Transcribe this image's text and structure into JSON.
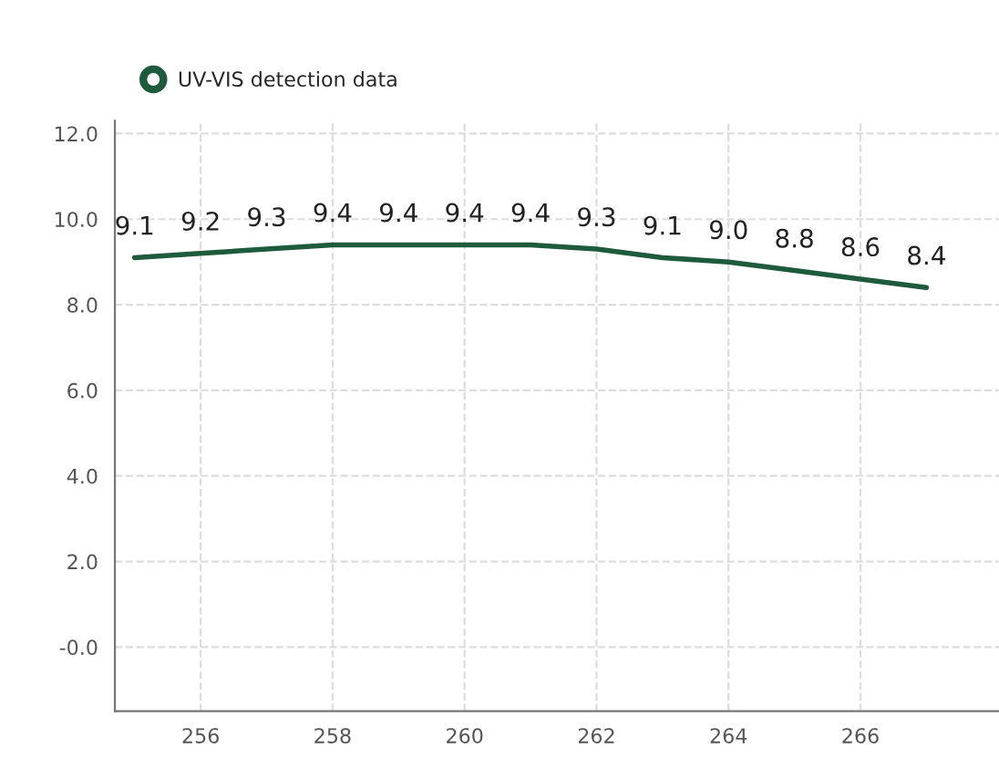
{
  "chart_data": {
    "type": "line",
    "x": [
      255,
      256,
      257,
      258,
      259,
      260,
      261,
      262,
      263,
      264,
      265,
      266,
      267
    ],
    "series": [
      {
        "name": "UV-VIS detection data",
        "color": "#1e5a3c",
        "values": [
          9.1,
          9.2,
          9.3,
          9.4,
          9.4,
          9.4,
          9.4,
          9.3,
          9.1,
          9.0,
          8.8,
          8.6,
          8.4
        ],
        "value_labels": [
          "9.1",
          "9.2",
          "9.3",
          "9.4",
          "9.4",
          "9.4",
          "9.4",
          "9.3",
          "9.1",
          "9.0",
          "8.8",
          "8.6",
          "8.4"
        ]
      }
    ],
    "xlim": [
      254.7,
      268.1
    ],
    "xticks": [
      256,
      258,
      260,
      262,
      264,
      266
    ],
    "ylim": [
      -1.5,
      12.3
    ],
    "yticks": [
      {
        "value": 0,
        "label": "-0.0"
      },
      {
        "value": 2,
        "label": "2.0"
      },
      {
        "value": 4,
        "label": "4.0"
      },
      {
        "value": 6,
        "label": "6.0"
      },
      {
        "value": 8,
        "label": "8.0"
      },
      {
        "value": 10,
        "label": "10.0"
      },
      {
        "value": 12,
        "label": "12.0"
      }
    ],
    "grid": true,
    "legend": "top left",
    "marker": "none",
    "line_style": "solid"
  }
}
